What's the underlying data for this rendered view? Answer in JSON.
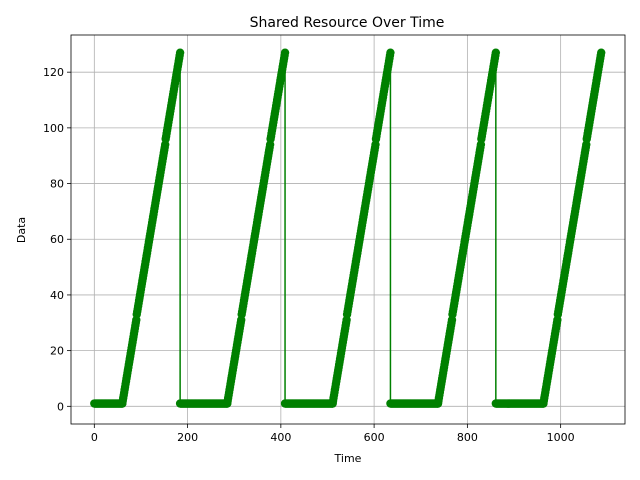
{
  "chart_data": {
    "type": "line",
    "title": "Shared Resource Over Time",
    "xlabel": "Time",
    "ylabel": "Data",
    "xlim": [
      -50,
      1138
    ],
    "ylim": [
      -6.35,
      133.35
    ],
    "xticks": [
      0,
      200,
      400,
      600,
      800,
      1000
    ],
    "yticks": [
      0,
      20,
      40,
      60,
      80,
      100,
      120
    ],
    "grid": true,
    "color": "#008000",
    "marker": "circle",
    "series": [
      {
        "segments": [
          {
            "x_start": 0,
            "x_end": 60,
            "y_start": 1,
            "y_end": 1
          },
          {
            "x_start": 60,
            "x_end": 184,
            "y_start": 1,
            "y_end": 127
          },
          {
            "x_start": 184,
            "x_end": 285,
            "y_start": 1,
            "y_end": 1
          },
          {
            "x_start": 285,
            "x_end": 409,
            "y_start": 1,
            "y_end": 127
          },
          {
            "x_start": 409,
            "x_end": 511,
            "y_start": 1,
            "y_end": 1
          },
          {
            "x_start": 511,
            "x_end": 635,
            "y_start": 1,
            "y_end": 127
          },
          {
            "x_start": 635,
            "x_end": 737,
            "y_start": 1,
            "y_end": 1
          },
          {
            "x_start": 737,
            "x_end": 861,
            "y_start": 1,
            "y_end": 127
          },
          {
            "x_start": 861,
            "x_end": 963,
            "y_start": 1,
            "y_end": 1
          },
          {
            "x_start": 963,
            "x_end": 1087,
            "y_start": 1,
            "y_end": 127
          }
        ]
      }
    ]
  }
}
